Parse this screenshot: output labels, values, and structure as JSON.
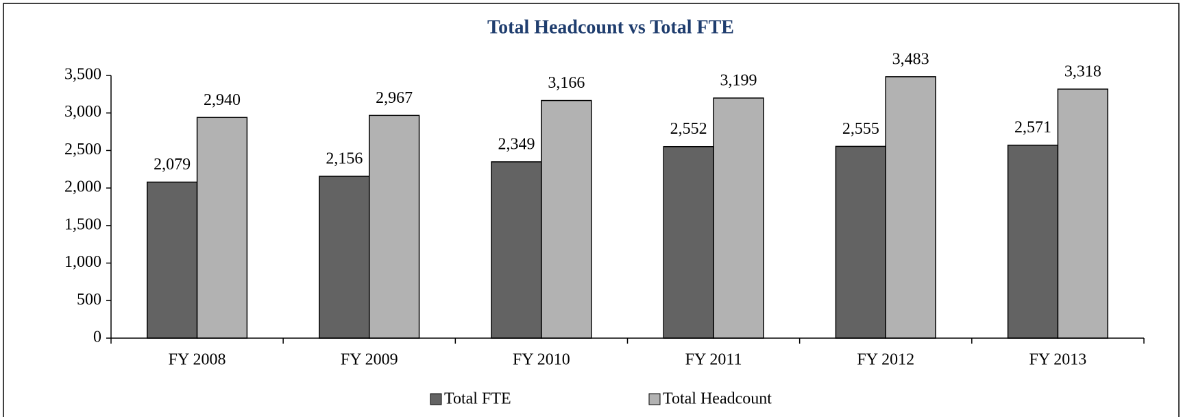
{
  "chart_data": {
    "type": "bar",
    "title": "Total Headcount vs Total FTE",
    "categories": [
      "FY 2008",
      "FY 2009",
      "FY 2010",
      "FY 2011",
      "FY 2012",
      "FY 2013"
    ],
    "series": [
      {
        "name": "Total FTE",
        "color": "#636363",
        "values": [
          2079,
          2156,
          2349,
          2552,
          2555,
          2571
        ],
        "value_labels": [
          "2,079",
          "2,156",
          "2,349",
          "2,552",
          "2,555",
          "2,571"
        ]
      },
      {
        "name": "Total Headcount",
        "color": "#b2b2b2",
        "values": [
          2940,
          2967,
          3166,
          3199,
          3483,
          3318
        ],
        "value_labels": [
          "2,940",
          "2,967",
          "3,166",
          "3,199",
          "3,483",
          "3,318"
        ]
      }
    ],
    "ylim": [
      0,
      3500
    ],
    "yticks": [
      0,
      500,
      {
        "value": 1000,
        "label": "1,000"
      },
      {
        "value": 1500,
        "label": "1,500"
      },
      {
        "value": 2000,
        "label": "2,000"
      },
      {
        "value": 2500,
        "label": "2,500"
      },
      {
        "value": 3000,
        "label": "3,000"
      },
      {
        "value": 3500,
        "label": "3,500"
      }
    ],
    "grid": false,
    "legend": "bottom"
  }
}
